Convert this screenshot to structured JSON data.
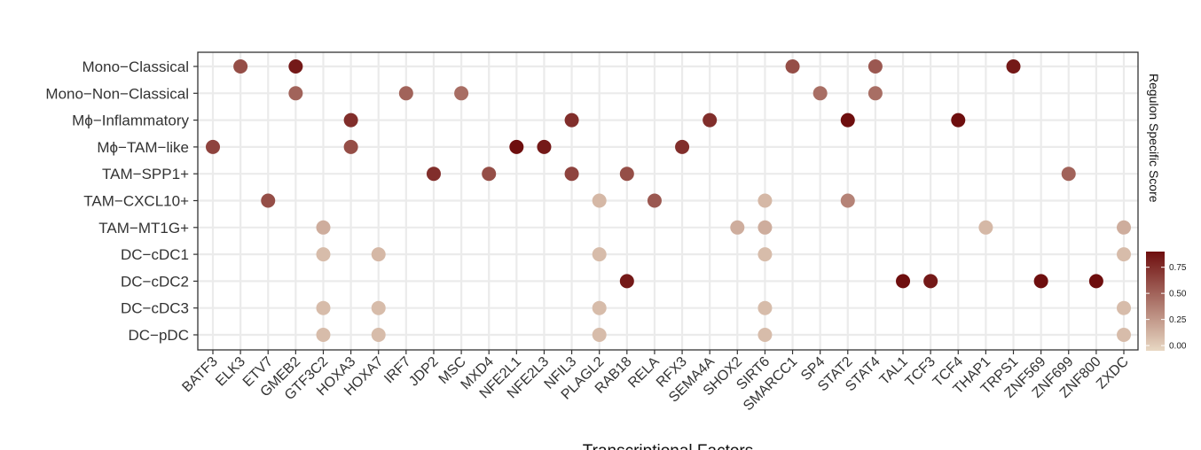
{
  "chart_data": {
    "type": "scatter",
    "x_categories": [
      "BATF3",
      "ELK3",
      "ETV7",
      "GMEB2",
      "GTF3C2",
      "HOXA3",
      "HOXA7",
      "IRF7",
      "JDP2",
      "MSC",
      "MXD4",
      "NFE2L1",
      "NFE2L3",
      "NFIL3",
      "PLAGL2",
      "RAB18",
      "RELA",
      "RFX3",
      "SEMA4A",
      "SHOX2",
      "SIRT6",
      "SMARCC1",
      "SP4",
      "STAT2",
      "STAT4",
      "TAL1",
      "TCF3",
      "TCF4",
      "THAP1",
      "TRPS1",
      "ZNF569",
      "ZNF699",
      "ZNF800",
      "ZXDC"
    ],
    "y_categories": [
      "Mono−Classical",
      "Mono−Non−Classical",
      "Mϕ−Inflammatory",
      "Mϕ−TAM−like",
      "TAM−SPP1+",
      "TAM−CXCL10+",
      "TAM−MT1G+",
      "DC−cDC1",
      "DC−cDC2",
      "DC−cDC3",
      "DC−pDC"
    ],
    "xlabel": "Transcriptional Factors",
    "ylabel": "",
    "legend": {
      "title": "Regulon Specific Score",
      "ticks": [
        "0.00",
        "0.25",
        "0.50",
        "0.75"
      ],
      "tick_values": [
        0,
        0.25,
        0.5,
        0.75
      ],
      "range": [
        -0.05,
        0.9
      ],
      "color_low": "#e8d8c3",
      "color_high": "#6e0e0e",
      "placement": "right"
    },
    "grid": true,
    "points": [
      {
        "x": "ELK3",
        "y": "Mono−Classical",
        "value": 0.6
      },
      {
        "x": "GMEB2",
        "y": "Mono−Classical",
        "value": 0.85
      },
      {
        "x": "SMARCC1",
        "y": "Mono−Classical",
        "value": 0.6
      },
      {
        "x": "STAT4",
        "y": "Mono−Classical",
        "value": 0.55
      },
      {
        "x": "TRPS1",
        "y": "Mono−Classical",
        "value": 0.85
      },
      {
        "x": "GMEB2",
        "y": "Mono−Non−Classical",
        "value": 0.5
      },
      {
        "x": "IRF7",
        "y": "Mono−Non−Classical",
        "value": 0.5
      },
      {
        "x": "MSC",
        "y": "Mono−Non−Classical",
        "value": 0.45
      },
      {
        "x": "SP4",
        "y": "Mono−Non−Classical",
        "value": 0.45
      },
      {
        "x": "STAT4",
        "y": "Mono−Non−Classical",
        "value": 0.45
      },
      {
        "x": "HOXA3",
        "y": "Mϕ−Inflammatory",
        "value": 0.75
      },
      {
        "x": "NFIL3",
        "y": "Mϕ−Inflammatory",
        "value": 0.75
      },
      {
        "x": "SEMA4A",
        "y": "Mϕ−Inflammatory",
        "value": 0.75
      },
      {
        "x": "STAT2",
        "y": "Mϕ−Inflammatory",
        "value": 0.9
      },
      {
        "x": "TCF4",
        "y": "Mϕ−Inflammatory",
        "value": 0.9
      },
      {
        "x": "BATF3",
        "y": "Mϕ−TAM−like",
        "value": 0.65
      },
      {
        "x": "HOXA3",
        "y": "Mϕ−TAM−like",
        "value": 0.6
      },
      {
        "x": "NFE2L1",
        "y": "Mϕ−TAM−like",
        "value": 0.9
      },
      {
        "x": "NFE2L3",
        "y": "Mϕ−TAM−like",
        "value": 0.85
      },
      {
        "x": "RFX3",
        "y": "Mϕ−TAM−like",
        "value": 0.75
      },
      {
        "x": "JDP2",
        "y": "TAM−SPP1+",
        "value": 0.75
      },
      {
        "x": "MXD4",
        "y": "TAM−SPP1+",
        "value": 0.6
      },
      {
        "x": "NFIL3",
        "y": "TAM−SPP1+",
        "value": 0.65
      },
      {
        "x": "RAB18",
        "y": "TAM−SPP1+",
        "value": 0.6
      },
      {
        "x": "ZNF699",
        "y": "TAM−SPP1+",
        "value": 0.5
      },
      {
        "x": "ETV7",
        "y": "TAM−CXCL10+",
        "value": 0.6
      },
      {
        "x": "PLAGL2",
        "y": "TAM−CXCL10+",
        "value": 0.1
      },
      {
        "x": "RELA",
        "y": "TAM−CXCL10+",
        "value": 0.55
      },
      {
        "x": "SIRT6",
        "y": "TAM−CXCL10+",
        "value": 0.1
      },
      {
        "x": "STAT2",
        "y": "TAM−CXCL10+",
        "value": 0.35
      },
      {
        "x": "GTF3C2",
        "y": "TAM−MT1G+",
        "value": 0.15
      },
      {
        "x": "SHOX2",
        "y": "TAM−MT1G+",
        "value": 0.15
      },
      {
        "x": "SIRT6",
        "y": "TAM−MT1G+",
        "value": 0.15
      },
      {
        "x": "THAP1",
        "y": "TAM−MT1G+",
        "value": 0.1
      },
      {
        "x": "ZXDC",
        "y": "TAM−MT1G+",
        "value": 0.15
      },
      {
        "x": "GTF3C2",
        "y": "DC−cDC1",
        "value": 0.08
      },
      {
        "x": "HOXA7",
        "y": "DC−cDC1",
        "value": 0.1
      },
      {
        "x": "PLAGL2",
        "y": "DC−cDC1",
        "value": 0.08
      },
      {
        "x": "SIRT6",
        "y": "DC−cDC1",
        "value": 0.08
      },
      {
        "x": "ZXDC",
        "y": "DC−cDC1",
        "value": 0.08
      },
      {
        "x": "RAB18",
        "y": "DC−cDC2",
        "value": 0.85
      },
      {
        "x": "TAL1",
        "y": "DC−cDC2",
        "value": 0.9
      },
      {
        "x": "TCF3",
        "y": "DC−cDC2",
        "value": 0.85
      },
      {
        "x": "ZNF569",
        "y": "DC−cDC2",
        "value": 0.9
      },
      {
        "x": "ZNF800",
        "y": "DC−cDC2",
        "value": 0.9
      },
      {
        "x": "GTF3C2",
        "y": "DC−cDC3",
        "value": 0.08
      },
      {
        "x": "HOXA7",
        "y": "DC−cDC3",
        "value": 0.08
      },
      {
        "x": "PLAGL2",
        "y": "DC−cDC3",
        "value": 0.08
      },
      {
        "x": "SIRT6",
        "y": "DC−cDC3",
        "value": 0.08
      },
      {
        "x": "ZXDC",
        "y": "DC−cDC3",
        "value": 0.08
      },
      {
        "x": "GTF3C2",
        "y": "DC−pDC",
        "value": 0.08
      },
      {
        "x": "HOXA7",
        "y": "DC−pDC",
        "value": 0.08
      },
      {
        "x": "PLAGL2",
        "y": "DC−pDC",
        "value": 0.08
      },
      {
        "x": "SIRT6",
        "y": "DC−pDC",
        "value": 0.08
      },
      {
        "x": "ZXDC",
        "y": "DC−pDC",
        "value": 0.08
      }
    ]
  },
  "colors": {
    "grid": "#ebebeb",
    "panel_border": "#333333",
    "tick": "#333333"
  }
}
